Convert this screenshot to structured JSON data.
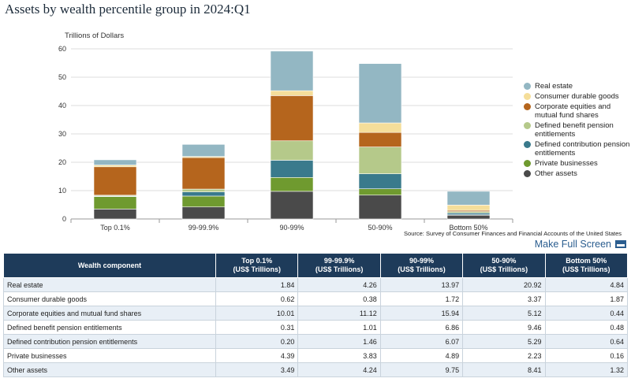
{
  "page": {
    "title": "Assets by wealth percentile group in 2024:Q1"
  },
  "links": {
    "full_screen": "Make Full Screen"
  },
  "chart_data": {
    "type": "bar",
    "stacked": true,
    "ylabel": "Trillions of Dollars",
    "ylim": [
      0,
      60
    ],
    "yticks": [
      "0",
      "10",
      "20",
      "30",
      "40",
      "50",
      "60"
    ],
    "categories": [
      "Top 0.1%",
      "99-99.9%",
      "90-99%",
      "50-90%",
      "Bottom 50%"
    ],
    "grid": true,
    "legend_position": "right",
    "source": "Source: Survey of Consumer Finances and Financial Accounts of the United States",
    "series": [
      {
        "name": "Other assets",
        "color": "#4a4a4a",
        "values": [
          3.49,
          4.24,
          9.75,
          8.41,
          1.32
        ]
      },
      {
        "name": "Private businesses",
        "color": "#6f9a2f",
        "values": [
          4.39,
          3.83,
          4.89,
          2.23,
          0.16
        ]
      },
      {
        "name": "Defined contribution pension entitlements",
        "color": "#3a7a8c",
        "values": [
          0.2,
          1.46,
          6.07,
          5.29,
          0.64
        ]
      },
      {
        "name": "Defined benefit pension entitlements",
        "color": "#b5c98a",
        "values": [
          0.31,
          1.01,
          6.86,
          9.46,
          0.48
        ]
      },
      {
        "name": "Corporate equities and mutual fund shares",
        "color": "#b5651d",
        "values": [
          10.01,
          11.12,
          15.94,
          5.12,
          0.44
        ]
      },
      {
        "name": "Consumer durable goods",
        "color": "#f5de9a",
        "values": [
          0.62,
          0.38,
          1.72,
          3.37,
          1.87
        ]
      },
      {
        "name": "Real estate",
        "color": "#93b7c3",
        "values": [
          1.84,
          4.26,
          13.97,
          20.92,
          4.84
        ]
      }
    ]
  },
  "legend": [
    {
      "label": "Real estate",
      "color": "#93b7c3"
    },
    {
      "label": "Consumer durable goods",
      "color": "#f5de9a"
    },
    {
      "label": "Corporate equities and mutual fund shares",
      "color": "#b5651d"
    },
    {
      "label": "Defined benefit pension entitlements",
      "color": "#b5c98a"
    },
    {
      "label": "Defined contribution pension entitlements",
      "color": "#3a7a8c"
    },
    {
      "label": "Private businesses",
      "color": "#6f9a2f"
    },
    {
      "label": "Other assets",
      "color": "#4a4a4a"
    }
  ],
  "table": {
    "headers": [
      "Wealth component",
      "Top 0.1%\n(US$ Trillions)",
      "99-99.9%\n(US$ Trillions)",
      "90-99%\n(US$ Trillions)",
      "50-90%\n(US$ Trillions)",
      "Bottom 50%\n(US$ Trillions)"
    ],
    "rows": [
      [
        "Real estate",
        "1.84",
        "4.26",
        "13.97",
        "20.92",
        "4.84"
      ],
      [
        "Consumer durable goods",
        "0.62",
        "0.38",
        "1.72",
        "3.37",
        "1.87"
      ],
      [
        "Corporate equities and mutual fund shares",
        "10.01",
        "11.12",
        "15.94",
        "5.12",
        "0.44"
      ],
      [
        "Defined benefit pension entitlements",
        "0.31",
        "1.01",
        "6.86",
        "9.46",
        "0.48"
      ],
      [
        "Defined contribution pension entitlements",
        "0.20",
        "1.46",
        "6.07",
        "5.29",
        "0.64"
      ],
      [
        "Private businesses",
        "4.39",
        "3.83",
        "4.89",
        "2.23",
        "0.16"
      ],
      [
        "Other assets",
        "3.49",
        "4.24",
        "9.75",
        "8.41",
        "1.32"
      ]
    ]
  }
}
